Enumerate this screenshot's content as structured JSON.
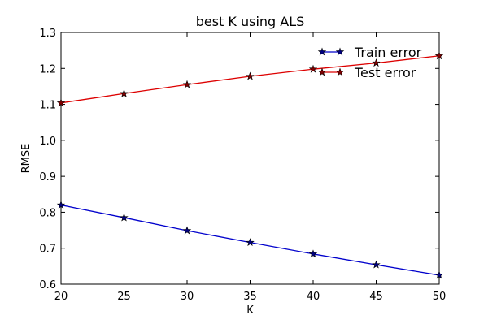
{
  "chart_data": {
    "type": "line",
    "title": "best K using ALS",
    "xlabel": "K",
    "ylabel": "RMSE",
    "x": [
      20,
      25,
      30,
      35,
      40,
      45,
      50
    ],
    "xlim": [
      20,
      50
    ],
    "ylim": [
      0.6,
      1.3
    ],
    "x_ticks": [
      20,
      25,
      30,
      35,
      40,
      45,
      50
    ],
    "y_ticks": [
      "0.6",
      "0.7",
      "0.8",
      "0.9",
      "1.0",
      "1.1",
      "1.2",
      "1.3"
    ],
    "grid": false,
    "legend_position": "top-right",
    "series": [
      {
        "name": "Train error",
        "color": "#0000cc",
        "marker_color": "#000080",
        "marker": "star",
        "values": [
          0.82,
          0.785,
          0.749,
          0.716,
          0.684,
          0.654,
          0.625
        ]
      },
      {
        "name": "Test error",
        "color": "#dd0000",
        "marker_color": "#800000",
        "marker": "star",
        "values": [
          1.104,
          1.13,
          1.155,
          1.178,
          1.198,
          1.215,
          1.235
        ]
      }
    ]
  }
}
